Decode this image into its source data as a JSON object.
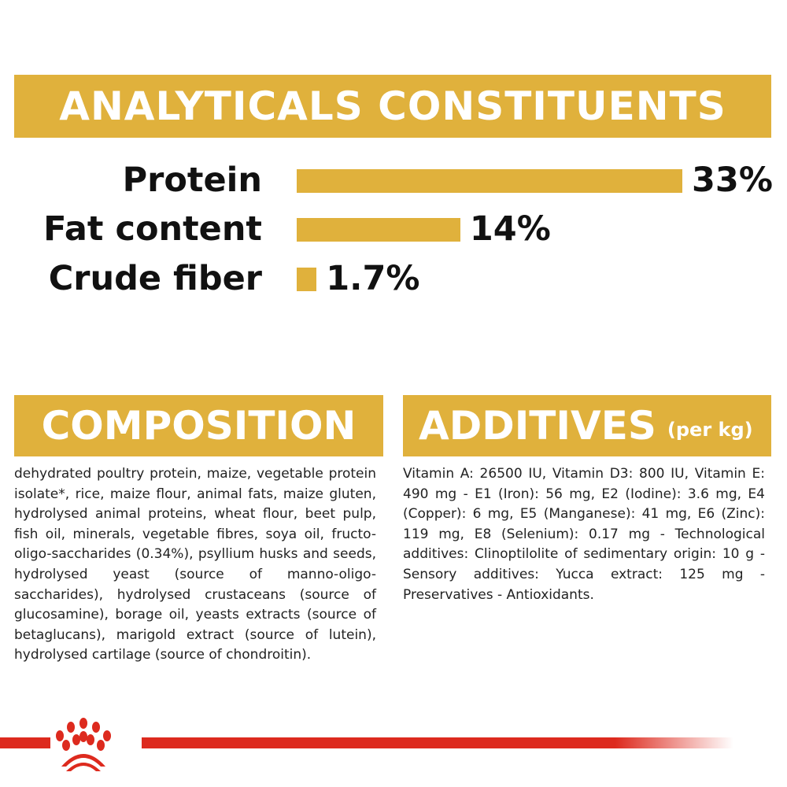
{
  "header": {
    "title": "ANALYTICALS CONSTITUENTS"
  },
  "chart_data": {
    "type": "bar",
    "orientation": "horizontal",
    "title": "ANALYTICALS CONSTITUENTS",
    "categories": [
      "Protein",
      "Fat content",
      "Crude fiber"
    ],
    "values": [
      33,
      14,
      1.7
    ],
    "value_labels": [
      "33%",
      "14%",
      "1.7%"
    ],
    "unit": "%",
    "bar_color": "#e0b13c",
    "grid": false
  },
  "composition": {
    "title": "COMPOSITION",
    "text": "dehydrated poultry protein, maize, vegetable protein isolate*, rice, maize flour, animal fats, maize gluten, hydrolysed animal proteins, wheat flour, beet pulp, fish oil, minerals, vegetable fibres, soya oil, fructo-oligo-saccharides (0.34%), psyllium husks and seeds, hydrolysed yeast (source of manno-oligo-saccharides), hydrolysed crustaceans (source of glucosamine), borage oil, yeasts extracts (source of betaglucans), marigold extract (source of lutein), hydrolysed cartilage (source of chondroitin)."
  },
  "additives": {
    "title": "ADDITIVES",
    "subtitle": "(per kg)",
    "text": "Vitamin A: 26500 IU, Vitamin D3: 800 IU, Vitamin E: 490 mg - E1 (Iron): 56 mg, E2 (Iodine): 3.6 mg, E4 (Copper): 6 mg, E5 (Manganese): 41 mg, E6 (Zinc): 119 mg, E8 (Selenium): 0.17 mg - Technological additives: Clinoptilolite of sedimentary origin: 10 g - Sensory additives: Yucca extract: 125 mg - Preservatives - Antioxidants."
  },
  "colors": {
    "gold": "#e0b13c",
    "brand_red": "#dd2a1e"
  },
  "logo": {
    "icon": "royal-canin-crown-icon"
  }
}
